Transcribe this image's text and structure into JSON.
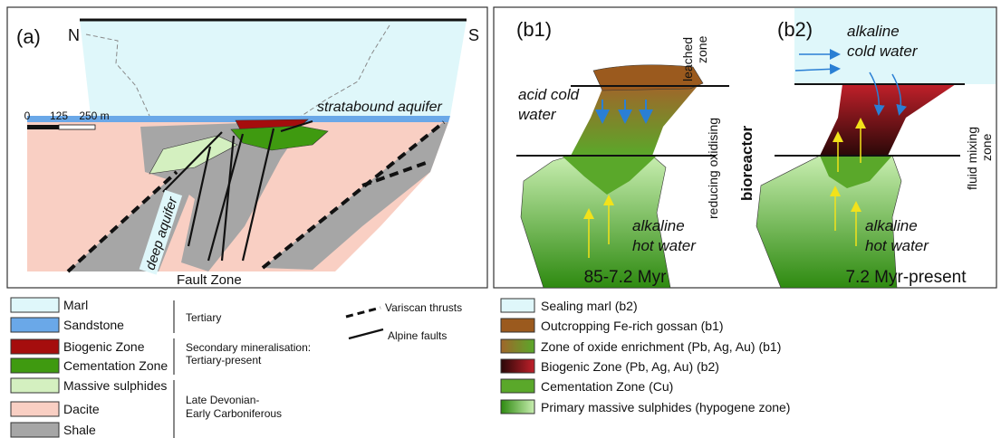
{
  "panel_a": {
    "label": "(a)",
    "north": "N",
    "south": "S",
    "scale_bar": [
      "0",
      "125",
      "250 m"
    ],
    "stratabound_aquifer": "stratabound aquifer",
    "deep_aquifer": "deep aquifer",
    "fault_zone": "Fault Zone"
  },
  "panel_b1": {
    "label": "(b1)",
    "leached_zone": [
      "leached",
      "zone"
    ],
    "reducing_oxidising": "reducing oxidising",
    "bioreactor": "bioreactor",
    "acid_cold_water": [
      "acid cold",
      "water"
    ],
    "alkaline_hot_water": [
      "alkaline",
      "hot water"
    ],
    "age": "85-7.2 Myr"
  },
  "panel_b2": {
    "label": "(b2)",
    "alkaline_cold_water": [
      "alkaline",
      "cold water"
    ],
    "fluid_mixing_zone": [
      "fluid mixing",
      "zone"
    ],
    "alkaline_hot_water": [
      "alkaline",
      "hot water"
    ],
    "age": "7.2 Myr-present"
  },
  "legend_units": {
    "items": [
      "Marl",
      "Sandstone",
      "Biogenic Zone",
      "Cementation Zone",
      "Massive sulphides",
      "Dacite",
      "Shale"
    ],
    "groups": [
      [
        "Tertiary"
      ],
      [
        "Secondary mineralisation:",
        "Tertiary-present"
      ],
      [
        "Late Devonian-",
        "Early Carboniferous"
      ]
    ],
    "lines": [
      "Variscan thrusts",
      "Alpine faults"
    ]
  },
  "legend_models": {
    "items": [
      "Sealing marl (b2)",
      "Outcropping Fe-rich gossan (b1)",
      "Zone of oxide enrichment (Pb, Ag, Au) (b1)",
      "Biogenic Zone (Pb, Ag, Au) (b2)",
      "Cementation Zone (Cu)",
      "Primary massive sulphides (hypogene zone)"
    ]
  }
}
